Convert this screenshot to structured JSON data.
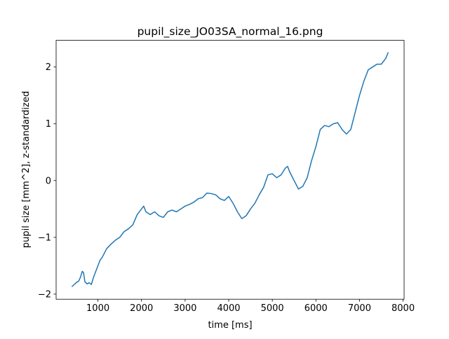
{
  "chart_data": {
    "type": "line",
    "title": "pupil_size_JO03SA_normal_16.png",
    "xlabel": "time [ms]",
    "ylabel": "pupil size [mm^2], z-standardized",
    "x": [
      400,
      500,
      560,
      600,
      640,
      670,
      700,
      750,
      800,
      850,
      900,
      950,
      1000,
      1050,
      1100,
      1200,
      1300,
      1400,
      1500,
      1600,
      1700,
      1800,
      1900,
      2000,
      2050,
      2100,
      2200,
      2300,
      2400,
      2500,
      2600,
      2700,
      2800,
      2900,
      3000,
      3100,
      3200,
      3300,
      3400,
      3500,
      3600,
      3700,
      3800,
      3900,
      4000,
      4100,
      4200,
      4300,
      4400,
      4500,
      4600,
      4700,
      4800,
      4900,
      5000,
      5100,
      5200,
      5300,
      5350,
      5400,
      5500,
      5600,
      5700,
      5800,
      5900,
      6000,
      6100,
      6200,
      6300,
      6400,
      6500,
      6600,
      6700,
      6800,
      6900,
      7000,
      7100,
      7200,
      7300,
      7400,
      7500,
      7600,
      7660
    ],
    "series": [
      {
        "name": "pupil size",
        "color": "#1f77b4",
        "values": [
          -1.87,
          -1.8,
          -1.77,
          -1.7,
          -1.6,
          -1.62,
          -1.78,
          -1.82,
          -1.8,
          -1.83,
          -1.7,
          -1.6,
          -1.5,
          -1.4,
          -1.35,
          -1.2,
          -1.12,
          -1.05,
          -1.0,
          -0.9,
          -0.85,
          -0.78,
          -0.6,
          -0.5,
          -0.45,
          -0.55,
          -0.6,
          -0.55,
          -0.62,
          -0.65,
          -0.55,
          -0.52,
          -0.55,
          -0.5,
          -0.45,
          -0.42,
          -0.38,
          -0.32,
          -0.3,
          -0.22,
          -0.23,
          -0.25,
          -0.32,
          -0.35,
          -0.28,
          -0.4,
          -0.55,
          -0.67,
          -0.62,
          -0.5,
          -0.4,
          -0.25,
          -0.12,
          0.1,
          0.12,
          0.05,
          0.1,
          0.22,
          0.25,
          0.15,
          0.0,
          -0.15,
          -0.1,
          0.05,
          0.35,
          0.6,
          0.9,
          0.97,
          0.95,
          1.0,
          1.02,
          0.9,
          0.82,
          0.9,
          1.2,
          1.5,
          1.75,
          1.95,
          2.0,
          2.05,
          2.05,
          2.15,
          2.26
        ]
      }
    ],
    "xlim": [
      41,
      8023
    ],
    "ylim": [
      -2.09,
      2.47
    ],
    "xticks": [
      1000,
      2000,
      3000,
      4000,
      5000,
      6000,
      7000,
      8000
    ],
    "yticks": [
      {
        "value": -2,
        "label": "−2"
      },
      {
        "value": -1,
        "label": "−1"
      },
      0,
      1,
      2
    ]
  }
}
